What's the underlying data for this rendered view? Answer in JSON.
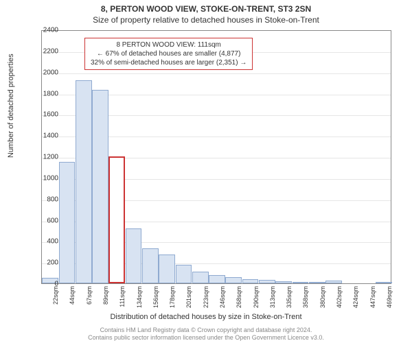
{
  "titles": {
    "line1": "8, PERTON WOOD VIEW, STOKE-ON-TRENT, ST3 2SN",
    "line2": "Size of property relative to detached houses in Stoke-on-Trent"
  },
  "chart": {
    "type": "histogram",
    "ylabel": "Number of detached properties",
    "xlabel": "Distribution of detached houses by size in Stoke-on-Trent",
    "ylim": [
      0,
      2400
    ],
    "ytick_step": 200,
    "yticks": [
      0,
      200,
      400,
      600,
      800,
      1000,
      1200,
      1400,
      1600,
      1800,
      2000,
      2200,
      2400
    ],
    "categories": [
      "22sqm",
      "44sqm",
      "67sqm",
      "89sqm",
      "111sqm",
      "134sqm",
      "156sqm",
      "178sqm",
      "201sqm",
      "223sqm",
      "246sqm",
      "268sqm",
      "290sqm",
      "313sqm",
      "335sqm",
      "358sqm",
      "380sqm",
      "402sqm",
      "424sqm",
      "447sqm",
      "469sqm"
    ],
    "values": [
      50,
      1150,
      1920,
      1830,
      1200,
      520,
      330,
      270,
      175,
      110,
      80,
      60,
      40,
      30,
      20,
      15,
      10,
      25,
      0,
      0,
      5
    ],
    "highlight_index": 4,
    "bar_fill": "#d8e3f2",
    "bar_border": "#8faad0",
    "highlight_fill": "#ffffff",
    "highlight_border": "#cc3333",
    "grid_color": "#e6e6e6",
    "background_color": "#ffffff",
    "label_fontsize": 11,
    "tick_fontsize": 10
  },
  "annotation": {
    "line1": "8 PERTON WOOD VIEW: 111sqm",
    "line2": "← 67% of detached houses are smaller (4,877)",
    "line3": "32% of semi-detached houses are larger (2,351) →",
    "border_color": "#cc3333"
  },
  "footer": {
    "line1": "Contains HM Land Registry data © Crown copyright and database right 2024.",
    "line2": "Contains public sector information licensed under the Open Government Licence v3.0."
  }
}
